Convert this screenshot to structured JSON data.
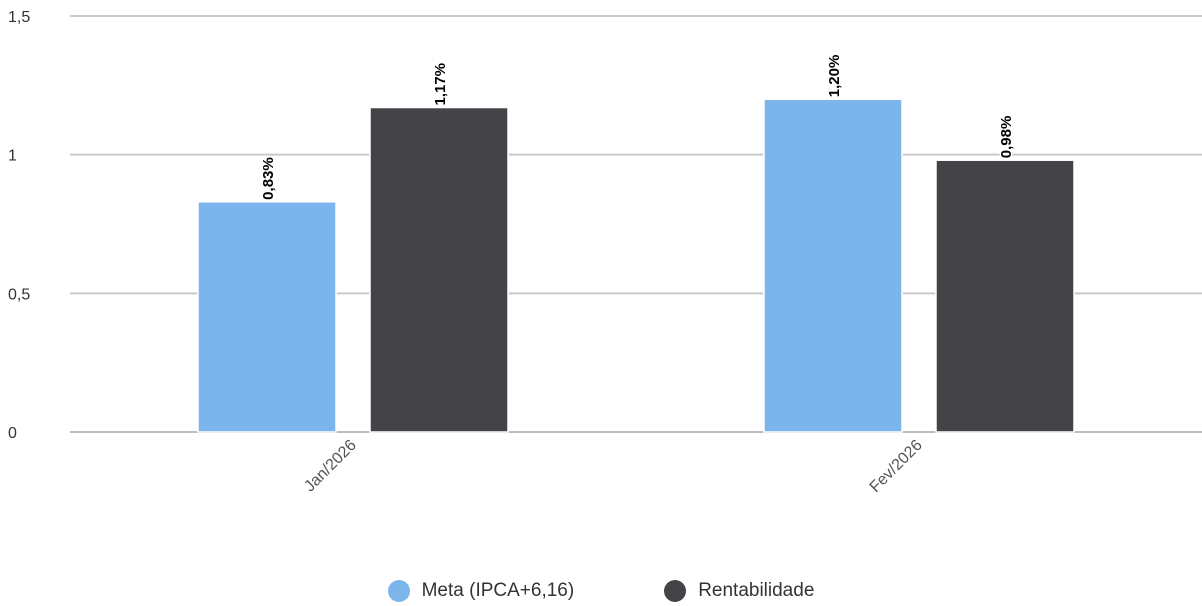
{
  "chart_data": {
    "type": "bar",
    "categories": [
      "Jan/2026",
      "Fev/2026"
    ],
    "series": [
      {
        "name": "Meta (IPCA+6,16)",
        "values": [
          0.83,
          1.2
        ],
        "labels": [
          "0,83%",
          "1,20%"
        ],
        "color": "#7cb5ec"
      },
      {
        "name": "Rentabilidade",
        "values": [
          1.17,
          0.98
        ],
        "labels": [
          "1,17%",
          "0,98%"
        ],
        "color": "#434348"
      }
    ],
    "ylim": [
      0,
      1.5
    ],
    "yticks": [
      {
        "value": 0,
        "label": "0"
      },
      {
        "value": 0.5,
        "label": "0,5"
      },
      {
        "value": 1,
        "label": "1"
      },
      {
        "value": 1.5,
        "label": "1,5"
      }
    ],
    "grid": true,
    "legend_position": "bottom-center",
    "title": "",
    "xlabel": "",
    "ylabel": ""
  }
}
